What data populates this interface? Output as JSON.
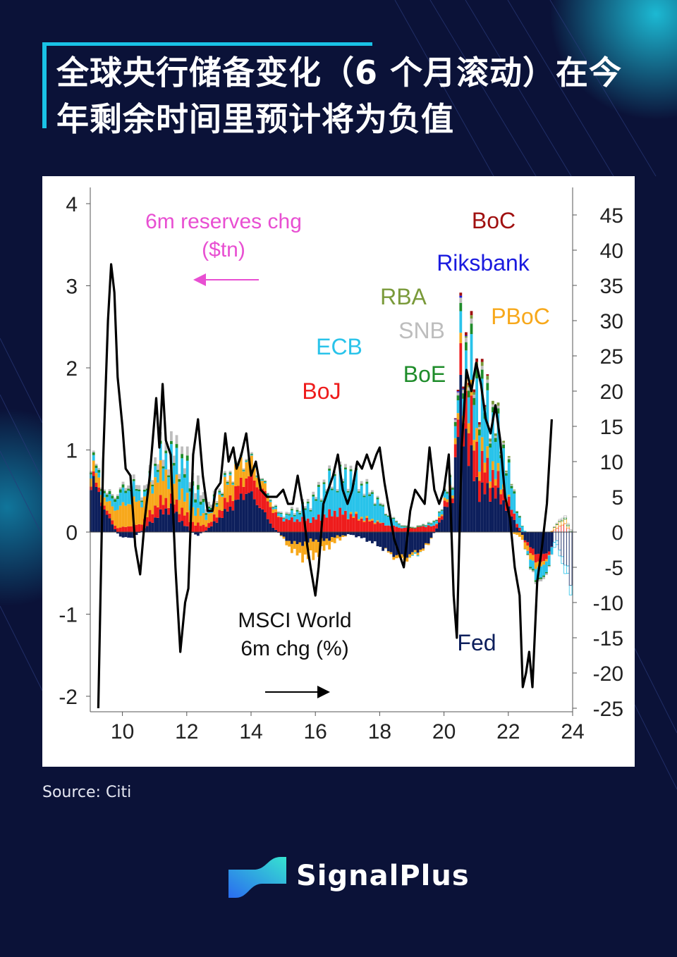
{
  "title": "全球央行储备变化（6 个月滚动）在今年剩余时间里预计将为负值",
  "source": "Source: Citi",
  "brand": "SignalPlus",
  "colors": {
    "background": "#0b1238",
    "accent": "#19c2e6",
    "Fed": "#0d1f5c",
    "BoJ": "#ee1c1c",
    "ECB": "#29c3ea",
    "PBoC": "#f7a81b",
    "BoE": "#1e8c2a",
    "SNB": "#bdbdbd",
    "RBA": "#7a9a3a",
    "Riksbank": "#1a1adf",
    "BoC": "#a01010",
    "msci": "#000000",
    "annotation": "#e84fd2"
  },
  "chart_data": {
    "type": "area",
    "x_ticks": [
      "10",
      "12",
      "14",
      "16",
      "18",
      "20",
      "22",
      "24"
    ],
    "y_left_ticks": [
      "4",
      "3",
      "2",
      "1",
      "0",
      "-1",
      "-2"
    ],
    "y_right_ticks": [
      "45",
      "40",
      "35",
      "30",
      "25",
      "20",
      "15",
      "10",
      "5",
      "0",
      "-5",
      "-10",
      "-15",
      "-20",
      "-25"
    ],
    "xlim": [
      2009,
      2024
    ],
    "ylim_left": [
      -2.2,
      4.2
    ],
    "ylim_right": [
      -27,
      47
    ],
    "annotations": {
      "reserves": "6m reserves chg",
      "reserves_unit": "($tn)",
      "msci": "MSCI World",
      "msci_unit": "6m chg (%)"
    },
    "bank_labels": {
      "BoC": "BoC",
      "Riksbank": "Riksbank",
      "RBA": "RBA",
      "SNB": "SNB",
      "PBoC": "PBoC",
      "ECB": "ECB",
      "BoE": "BoE",
      "BoJ": "BoJ",
      "Fed": "Fed"
    },
    "stack_order": [
      "Fed",
      "BoJ",
      "PBoC",
      "ECB",
      "BoE",
      "SNB",
      "RBA",
      "Riksbank",
      "BoC"
    ],
    "bars": [
      {
        "x": 2009.1,
        "Fed": 0.62,
        "BoJ": 0.05,
        "PBoC": 0.12,
        "ECB": 0.06,
        "BoE": 0.03,
        "SNB": 0.02
      },
      {
        "x": 2009.5,
        "Fed": 0.22,
        "BoJ": 0.05,
        "PBoC": 0.1,
        "ECB": 0.05,
        "BoE": 0.03,
        "SNB": 0.02
      },
      {
        "x": 2009.9,
        "Fed": -0.05,
        "BoJ": 0.05,
        "PBoC": 0.25,
        "ECB": 0.15,
        "BoE": 0.04,
        "SNB": 0.02
      },
      {
        "x": 2010.3,
        "Fed": -0.08,
        "BoJ": 0.08,
        "PBoC": 0.3,
        "ECB": 0.18,
        "BoE": 0.02,
        "SNB": 0.05
      },
      {
        "x": 2010.7,
        "Fed": 0.05,
        "BoJ": 0.1,
        "PBoC": 0.25,
        "ECB": 0.05,
        "BoE": 0.02,
        "SNB": 0.05
      },
      {
        "x": 2011.1,
        "Fed": 0.2,
        "BoJ": 0.15,
        "PBoC": 0.35,
        "ECB": 0.15,
        "BoE": 0.03,
        "SNB": 0.08
      },
      {
        "x": 2011.5,
        "Fed": 0.3,
        "BoJ": 0.1,
        "PBoC": 0.3,
        "ECB": 0.2,
        "BoE": 0.03,
        "SNB": 0.1
      },
      {
        "x": 2011.9,
        "Fed": 0.1,
        "BoJ": 0.15,
        "PBoC": 0.2,
        "ECB": 0.35,
        "BoE": 0.05,
        "SNB": 0.08
      },
      {
        "x": 2012.3,
        "Fed": -0.05,
        "BoJ": 0.1,
        "PBoC": 0.15,
        "ECB": 0.2,
        "BoE": 0.05,
        "SNB": 0.1
      },
      {
        "x": 2012.7,
        "Fed": 0.05,
        "BoJ": 0.05,
        "PBoC": 0.1,
        "ECB": 0.05,
        "BoE": 0.02,
        "SNB": 0.05
      },
      {
        "x": 2013.1,
        "Fed": 0.2,
        "BoJ": 0.1,
        "PBoC": 0.2,
        "ECB": 0.02,
        "BoE": 0.02,
        "SNB": 0.02
      },
      {
        "x": 2013.5,
        "Fed": 0.35,
        "BoJ": 0.15,
        "PBoC": 0.25,
        "ECB": 0.02,
        "BoE": 0.01,
        "SNB": 0.02
      },
      {
        "x": 2013.9,
        "Fed": 0.5,
        "BoJ": 0.2,
        "PBoC": 0.2,
        "ECB": 0.01,
        "BoE": 0.01,
        "SNB": 0.02
      },
      {
        "x": 2014.3,
        "Fed": 0.3,
        "BoJ": 0.25,
        "PBoC": 0.1,
        "ECB": 0.01,
        "BoE": 0.01,
        "SNB": 0.01
      },
      {
        "x": 2014.7,
        "Fed": 0.05,
        "BoJ": 0.2,
        "PBoC": 0.05,
        "ECB": 0.02,
        "BoE": 0.01,
        "SNB": 0.01
      },
      {
        "x": 2015.1,
        "Fed": -0.1,
        "BoJ": 0.15,
        "PBoC": -0.05,
        "ECB": 0.05,
        "BoE": 0.01,
        "SNB": 0.02
      },
      {
        "x": 2015.5,
        "Fed": -0.15,
        "BoJ": 0.15,
        "PBoC": -0.15,
        "ECB": 0.1,
        "BoE": 0.02,
        "SNB": 0.03
      },
      {
        "x": 2015.9,
        "Fed": -0.1,
        "BoJ": 0.15,
        "PBoC": -0.2,
        "ECB": 0.2,
        "BoE": 0.02,
        "SNB": 0.03
      },
      {
        "x": 2016.3,
        "Fed": -0.1,
        "BoJ": 0.2,
        "PBoC": -0.1,
        "ECB": 0.35,
        "BoE": 0.02,
        "SNB": 0.03
      },
      {
        "x": 2016.7,
        "Fed": -0.05,
        "BoJ": 0.25,
        "PBoC": -0.05,
        "ECB": 0.4,
        "BoE": 0.02,
        "SNB": 0.03
      },
      {
        "x": 2017.1,
        "Fed": -0.03,
        "BoJ": 0.2,
        "PBoC": 0.02,
        "ECB": 0.45,
        "BoE": 0.02,
        "SNB": 0.04
      },
      {
        "x": 2017.5,
        "Fed": -0.08,
        "BoJ": 0.15,
        "PBoC": 0.02,
        "ECB": 0.35,
        "BoE": 0.02,
        "SNB": 0.03
      },
      {
        "x": 2017.9,
        "Fed": -0.15,
        "BoJ": 0.12,
        "PBoC": 0.02,
        "ECB": 0.25,
        "BoE": 0.02,
        "SNB": 0.02
      },
      {
        "x": 2018.3,
        "Fed": -0.25,
        "BoJ": 0.08,
        "PBoC": -0.02,
        "ECB": 0.1,
        "BoE": 0.01,
        "SNB": 0.01
      },
      {
        "x": 2018.7,
        "Fed": -0.3,
        "BoJ": 0.05,
        "PBoC": -0.05,
        "ECB": 0.02,
        "BoE": 0.01,
        "SNB": 0.01
      },
      {
        "x": 2019.1,
        "Fed": -0.25,
        "BoJ": 0.05,
        "PBoC": -0.03,
        "ECB": -0.02,
        "BoE": 0.01,
        "SNB": 0.01
      },
      {
        "x": 2019.5,
        "Fed": -0.15,
        "BoJ": 0.08,
        "PBoC": -0.02,
        "ECB": 0.02,
        "BoE": 0.01,
        "SNB": 0.01
      },
      {
        "x": 2019.9,
        "Fed": 0.15,
        "BoJ": 0.05,
        "PBoC": 0.02,
        "ECB": 0.05,
        "BoE": 0.01,
        "SNB": 0.01
      },
      {
        "x": 2020.3,
        "Fed": 0.5,
        "BoJ": 0.08,
        "PBoC": 0.05,
        "ECB": 0.1,
        "BoE": 0.03,
        "SNB": 0.02
      },
      {
        "x": 2020.5,
        "Fed": 1.6,
        "BoJ": 0.3,
        "PBoC": 0.1,
        "ECB": 0.2,
        "BoE": 0.08,
        "SNB": 0.05,
        "Riksbank": 0.02,
        "BoC": 0.03
      },
      {
        "x": 2020.8,
        "Fed": 0.9,
        "BoJ": 0.5,
        "PBoC": 0.15,
        "ECB": 0.4,
        "BoE": 0.1,
        "SNB": 0.05,
        "RBA": 0.03,
        "BoC": 0.04
      },
      {
        "x": 2021.1,
        "Fed": 0.5,
        "BoJ": 0.35,
        "PBoC": 0.15,
        "ECB": 0.6,
        "BoE": 0.1,
        "SNB": 0.04,
        "RBA": 0.04,
        "BoC": 0.04
      },
      {
        "x": 2021.5,
        "Fed": 0.5,
        "BoJ": 0.2,
        "PBoC": 0.1,
        "ECB": 0.55,
        "BoE": 0.06,
        "SNB": 0.03,
        "RBA": 0.04
      },
      {
        "x": 2021.9,
        "Fed": 0.35,
        "BoJ": 0.12,
        "PBoC": 0.05,
        "ECB": 0.4,
        "BoE": 0.04,
        "SNB": 0.02,
        "RBA": 0.02
      },
      {
        "x": 2022.3,
        "Fed": 0.05,
        "BoJ": 0.05,
        "PBoC": -0.05,
        "ECB": 0.15,
        "BoE": 0.02,
        "SNB": 0.01
      },
      {
        "x": 2022.7,
        "Fed": -0.2,
        "BoJ": -0.08,
        "PBoC": -0.08,
        "ECB": -0.1,
        "BoE": -0.02,
        "SNB": -0.02
      },
      {
        "x": 2023.1,
        "Fed": -0.3,
        "BoJ": -0.1,
        "PBoC": -0.05,
        "ECB": -0.15,
        "BoE": -0.02,
        "SNB": -0.03
      },
      {
        "x": 2023.5,
        "Fed": -0.1,
        "BoJ": 0.05,
        "PBoC": 0.05,
        "ECB": -0.05,
        "BoE": 0.01,
        "SNB": 0.01
      },
      {
        "x": 2023.8,
        "Fed": -0.4,
        "BoJ": 0.1,
        "PBoC": 0.05,
        "ECB": -0.1,
        "BoE": 0.02,
        "SNB": 0.02
      },
      {
        "x": 2024.0,
        "Fed": -0.75,
        "BoJ": -0.05,
        "PBoC": -0.02,
        "ECB": -0.12,
        "BoE": 0.01,
        "SNB": 0.01
      }
    ],
    "msci_line": [
      [
        2009.25,
        -25
      ],
      [
        2009.4,
        10
      ],
      [
        2009.55,
        30
      ],
      [
        2009.65,
        38
      ],
      [
        2009.75,
        34
      ],
      [
        2009.85,
        22
      ],
      [
        2010.0,
        15
      ],
      [
        2010.1,
        9
      ],
      [
        2010.25,
        8
      ],
      [
        2010.4,
        -2
      ],
      [
        2010.55,
        -6
      ],
      [
        2010.7,
        2
      ],
      [
        2010.85,
        8
      ],
      [
        2011.05,
        19
      ],
      [
        2011.15,
        12
      ],
      [
        2011.25,
        21
      ],
      [
        2011.35,
        13
      ],
      [
        2011.5,
        11
      ],
      [
        2011.65,
        -5
      ],
      [
        2011.8,
        -17
      ],
      [
        2011.95,
        -10
      ],
      [
        2012.05,
        -8
      ],
      [
        2012.2,
        11
      ],
      [
        2012.35,
        16
      ],
      [
        2012.5,
        8
      ],
      [
        2012.65,
        3
      ],
      [
        2012.8,
        3
      ],
      [
        2012.9,
        6
      ],
      [
        2013.05,
        7
      ],
      [
        2013.2,
        14
      ],
      [
        2013.3,
        10
      ],
      [
        2013.45,
        12
      ],
      [
        2013.55,
        9
      ],
      [
        2013.7,
        11
      ],
      [
        2013.85,
        14
      ],
      [
        2014.0,
        8
      ],
      [
        2014.15,
        10
      ],
      [
        2014.3,
        6
      ],
      [
        2014.5,
        5
      ],
      [
        2014.65,
        5
      ],
      [
        2014.8,
        5
      ],
      [
        2015.0,
        6
      ],
      [
        2015.15,
        4
      ],
      [
        2015.3,
        4
      ],
      [
        2015.45,
        8
      ],
      [
        2015.6,
        4
      ],
      [
        2015.75,
        -2
      ],
      [
        2015.85,
        -5
      ],
      [
        2016.0,
        -9
      ],
      [
        2016.1,
        -5
      ],
      [
        2016.25,
        4
      ],
      [
        2016.4,
        6
      ],
      [
        2016.55,
        8
      ],
      [
        2016.7,
        11
      ],
      [
        2016.85,
        6
      ],
      [
        2017.0,
        4
      ],
      [
        2017.15,
        6
      ],
      [
        2017.3,
        10
      ],
      [
        2017.45,
        9
      ],
      [
        2017.6,
        11
      ],
      [
        2017.75,
        9
      ],
      [
        2017.9,
        11
      ],
      [
        2018.0,
        12
      ],
      [
        2018.15,
        7
      ],
      [
        2018.3,
        3
      ],
      [
        2018.45,
        -1
      ],
      [
        2018.6,
        -3
      ],
      [
        2018.75,
        -5
      ],
      [
        2018.85,
        -1
      ],
      [
        2018.95,
        3
      ],
      [
        2019.1,
        6
      ],
      [
        2019.25,
        5
      ],
      [
        2019.4,
        4
      ],
      [
        2019.55,
        12
      ],
      [
        2019.7,
        6
      ],
      [
        2019.85,
        4
      ],
      [
        2020.0,
        6
      ],
      [
        2020.15,
        11
      ],
      [
        2020.3,
        -9
      ],
      [
        2020.4,
        -15
      ],
      [
        2020.55,
        12
      ],
      [
        2020.7,
        23
      ],
      [
        2020.85,
        20
      ],
      [
        2021.0,
        24
      ],
      [
        2021.15,
        21
      ],
      [
        2021.3,
        16
      ],
      [
        2021.45,
        14
      ],
      [
        2021.6,
        18
      ],
      [
        2021.75,
        13
      ],
      [
        2021.9,
        5
      ],
      [
        2022.05,
        2
      ],
      [
        2022.2,
        -5
      ],
      [
        2022.35,
        -9
      ],
      [
        2022.45,
        -22
      ],
      [
        2022.55,
        -20
      ],
      [
        2022.65,
        -17
      ],
      [
        2022.75,
        -22
      ],
      [
        2022.9,
        -7
      ],
      [
        2023.05,
        -2
      ],
      [
        2023.2,
        4
      ],
      [
        2023.35,
        16
      ]
    ]
  }
}
